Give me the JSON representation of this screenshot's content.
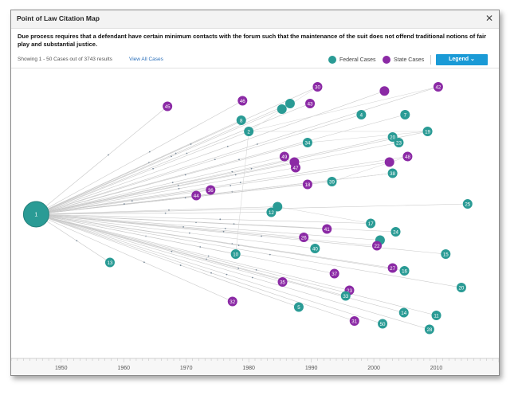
{
  "dialog": {
    "title": "Point of Law Citation Map",
    "close_glyph": "✕",
    "description": "Due process requires that a defendant have certain minimum contacts with the forum such that the maintenance of the suit does not offend traditional notions of fair play and substantial justice."
  },
  "toolbar": {
    "showing": "Showing 1 - 50 Cases out of 3743 results",
    "view_all": "View All Cases",
    "legend_federal": "Federal Cases",
    "legend_state": "State Cases",
    "legend_button": "Legend",
    "legend_chevron": "⌄"
  },
  "colors": {
    "federal": "#2a9b95",
    "state": "#8b2aa5",
    "accent": "#1a9ad6"
  },
  "chart_data": {
    "type": "scatter",
    "xaxis_ticks": [
      "1950",
      "1960",
      "1970",
      "1980",
      "1990",
      "2000",
      "2010"
    ],
    "xlim": [
      1942,
      2020
    ],
    "root": {
      "label": "1",
      "year": 1946,
      "type": "federal"
    },
    "nodes": [
      {
        "label": "45",
        "year": 1967,
        "row": 0.11,
        "type": "state"
      },
      {
        "label": "46",
        "year": 1979,
        "row": 0.09,
        "type": "state"
      },
      {
        "label": "8",
        "year": 1978.8,
        "row": 0.16,
        "type": "federal"
      },
      {
        "label": "2",
        "year": 1980,
        "row": 0.2,
        "type": "federal"
      },
      {
        "label": "",
        "year": 1985.3,
        "row": 0.12,
        "type": "federal"
      },
      {
        "label": "",
        "year": 1986.6,
        "row": 0.1,
        "type": "federal"
      },
      {
        "label": "43",
        "year": 1989.8,
        "row": 0.1,
        "type": "state"
      },
      {
        "label": "30",
        "year": 1991,
        "row": 0.04,
        "type": "state"
      },
      {
        "label": "",
        "year": 2001.7,
        "row": 0.055,
        "type": "state"
      },
      {
        "label": "42",
        "year": 2010.3,
        "row": 0.04,
        "type": "state"
      },
      {
        "label": "4",
        "year": 1998,
        "row": 0.14,
        "type": "federal"
      },
      {
        "label": "7",
        "year": 2005,
        "row": 0.14,
        "type": "federal"
      },
      {
        "label": "19",
        "year": 2008.6,
        "row": 0.2,
        "type": "federal"
      },
      {
        "label": "20",
        "year": 2003,
        "row": 0.22,
        "type": "federal"
      },
      {
        "label": "23",
        "year": 2004,
        "row": 0.24,
        "type": "federal"
      },
      {
        "label": "34",
        "year": 1989.4,
        "row": 0.24,
        "type": "federal"
      },
      {
        "label": "49",
        "year": 1985.7,
        "row": 0.29,
        "type": "state"
      },
      {
        "label": "",
        "year": 1987.3,
        "row": 0.31,
        "type": "state"
      },
      {
        "label": "47",
        "year": 1987.5,
        "row": 0.33,
        "type": "state"
      },
      {
        "label": "48",
        "year": 2005.4,
        "row": 0.29,
        "type": "state"
      },
      {
        "label": "",
        "year": 2002.5,
        "row": 0.31,
        "type": "state"
      },
      {
        "label": "38",
        "year": 2003,
        "row": 0.35,
        "type": "federal"
      },
      {
        "label": "39",
        "year": 1993.3,
        "row": 0.38,
        "type": "federal"
      },
      {
        "label": "18",
        "year": 1989.4,
        "row": 0.39,
        "type": "state"
      },
      {
        "label": "36",
        "year": 1973.9,
        "row": 0.41,
        "type": "state"
      },
      {
        "label": "44",
        "year": 1971.6,
        "row": 0.43,
        "type": "state"
      },
      {
        "label": "25",
        "year": 2015,
        "row": 0.46,
        "type": "federal"
      },
      {
        "label": "",
        "year": 1984.6,
        "row": 0.47,
        "type": "federal"
      },
      {
        "label": "12",
        "year": 1983.6,
        "row": 0.49,
        "type": "federal"
      },
      {
        "label": "17",
        "year": 1999.5,
        "row": 0.53,
        "type": "federal"
      },
      {
        "label": "41",
        "year": 1992.5,
        "row": 0.55,
        "type": "state"
      },
      {
        "label": "24",
        "year": 2003.5,
        "row": 0.56,
        "type": "federal"
      },
      {
        "label": "26",
        "year": 1988.8,
        "row": 0.58,
        "type": "state"
      },
      {
        "label": "",
        "year": 2001,
        "row": 0.59,
        "type": "federal"
      },
      {
        "label": "22",
        "year": 2000.5,
        "row": 0.61,
        "type": "state"
      },
      {
        "label": "40",
        "year": 1990.6,
        "row": 0.62,
        "type": "federal"
      },
      {
        "label": "10",
        "year": 1977.9,
        "row": 0.64,
        "type": "federal"
      },
      {
        "label": "15",
        "year": 2011.5,
        "row": 0.64,
        "type": "federal"
      },
      {
        "label": "13",
        "year": 1957.8,
        "row": 0.67,
        "type": "federal"
      },
      {
        "label": "27",
        "year": 2003,
        "row": 0.69,
        "type": "state"
      },
      {
        "label": "16",
        "year": 2004.9,
        "row": 0.7,
        "type": "federal"
      },
      {
        "label": "37",
        "year": 1993.7,
        "row": 0.71,
        "type": "state"
      },
      {
        "label": "35",
        "year": 1985.4,
        "row": 0.74,
        "type": "state"
      },
      {
        "label": "20",
        "year": 2014,
        "row": 0.76,
        "type": "federal"
      },
      {
        "label": "23",
        "year": 1996.1,
        "row": 0.77,
        "type": "state"
      },
      {
        "label": "33",
        "year": 1995.5,
        "row": 0.79,
        "type": "federal"
      },
      {
        "label": "32",
        "year": 1977.4,
        "row": 0.81,
        "type": "state"
      },
      {
        "label": "5",
        "year": 1988,
        "row": 0.83,
        "type": "federal"
      },
      {
        "label": "14",
        "year": 2004.8,
        "row": 0.85,
        "type": "federal"
      },
      {
        "label": "11",
        "year": 2010,
        "row": 0.86,
        "type": "federal"
      },
      {
        "label": "31",
        "year": 1996.9,
        "row": 0.88,
        "type": "state"
      },
      {
        "label": "50",
        "year": 2001.4,
        "row": 0.89,
        "type": "federal"
      },
      {
        "label": "28",
        "year": 2008.9,
        "row": 0.91,
        "type": "federal"
      }
    ]
  }
}
